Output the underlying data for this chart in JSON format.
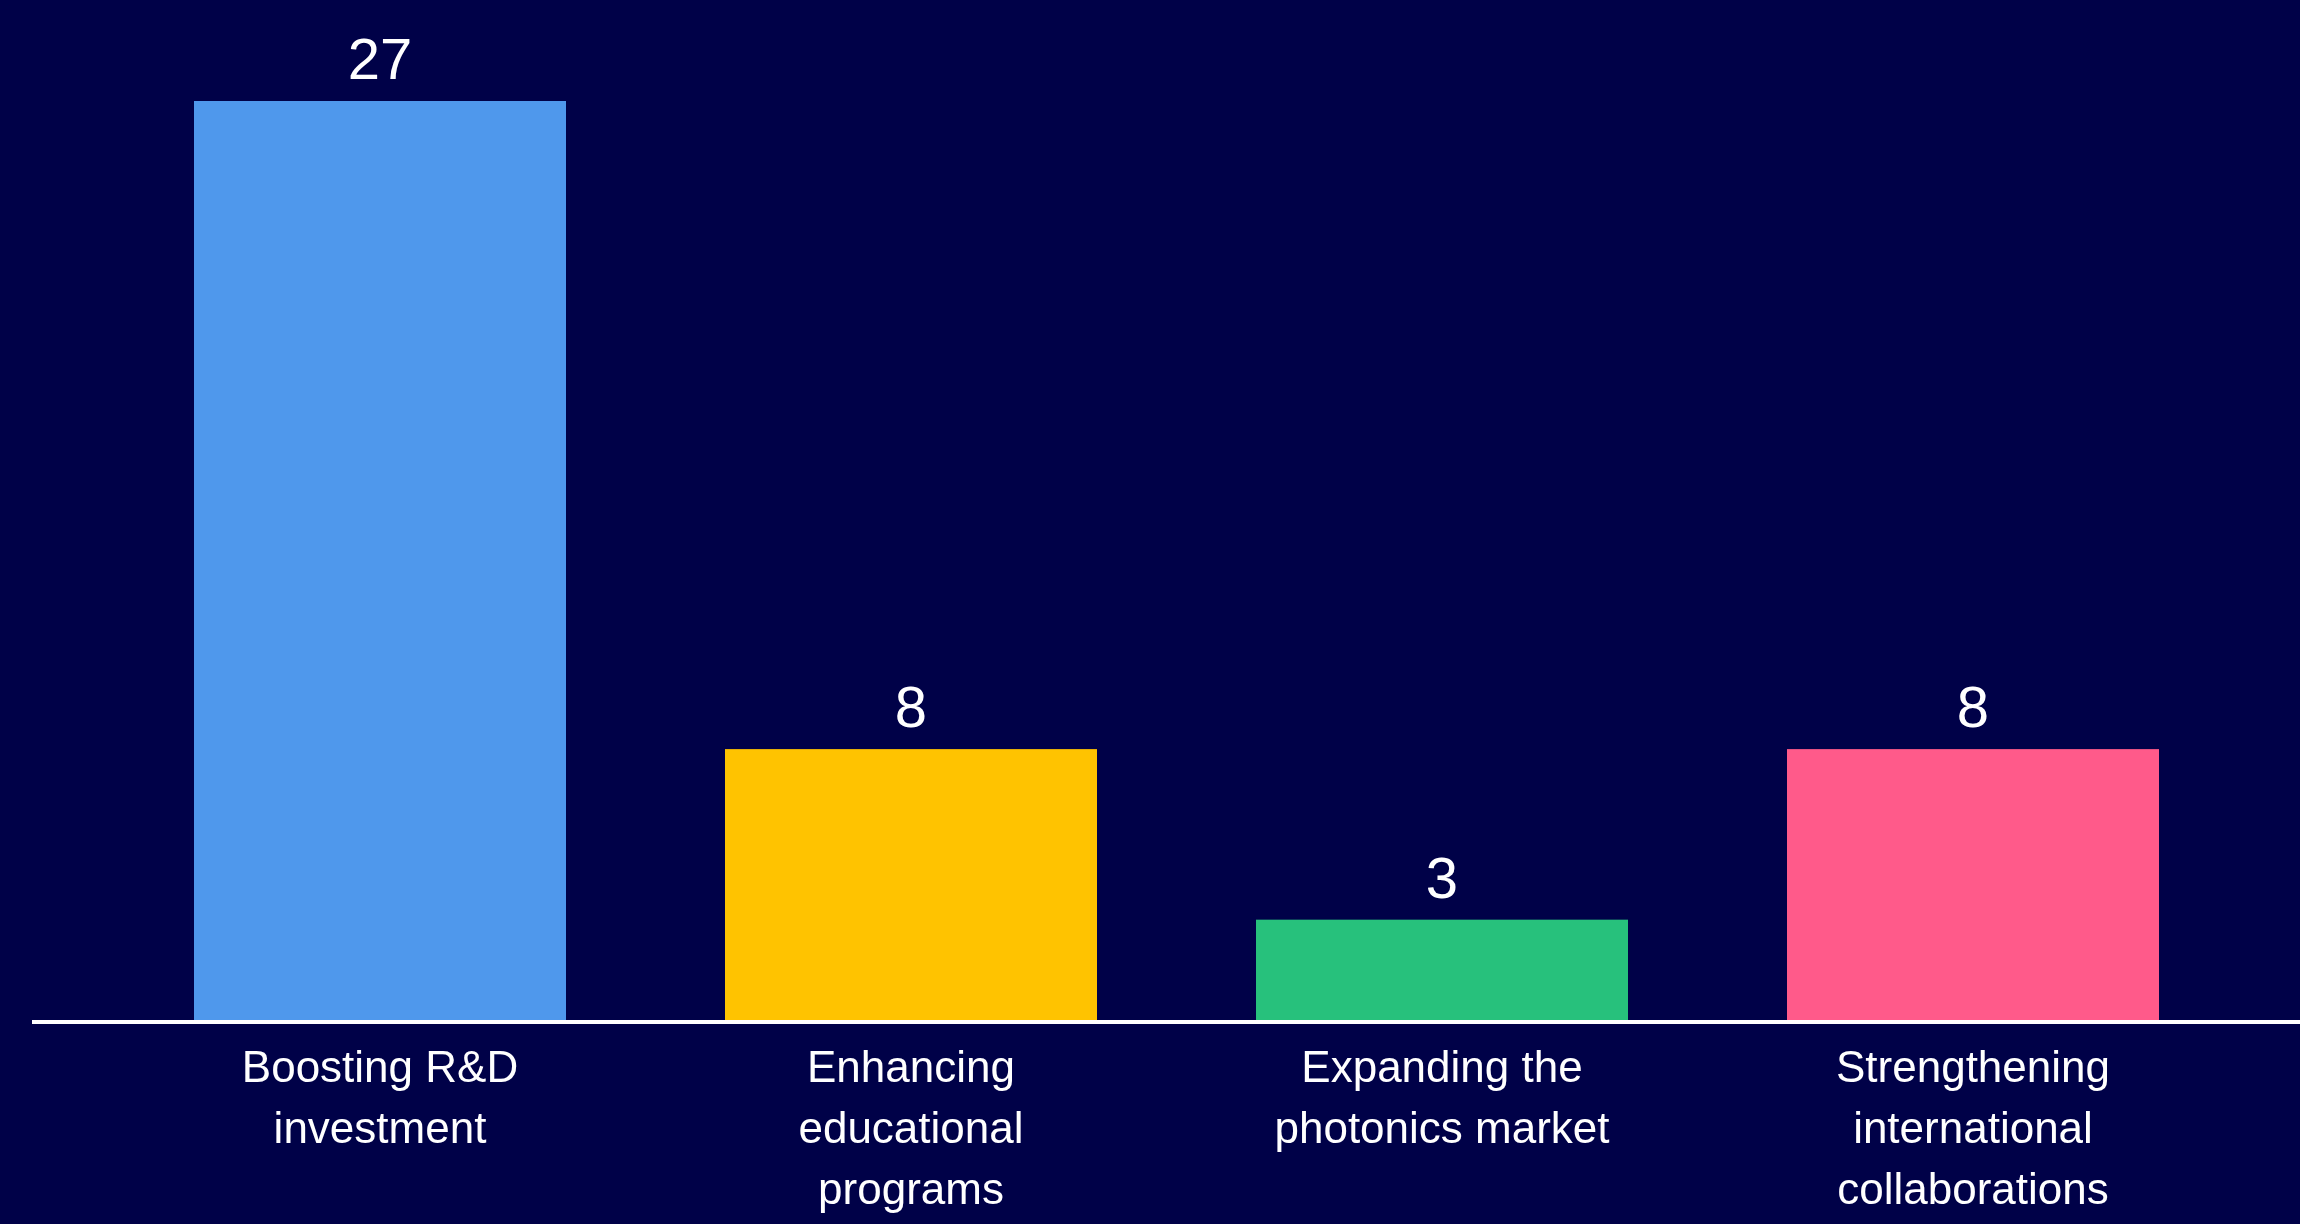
{
  "chart_data": {
    "type": "bar",
    "categories": [
      "Boosting R&D investment",
      "Enhancing educational programs",
      "Expanding the photonics market",
      "Strengthening international collaborations"
    ],
    "values": [
      27,
      8,
      3,
      8
    ],
    "colors": [
      "#4f98ec",
      "#ffc300",
      "#27c17c",
      "#ff5a8a"
    ],
    "data_labels": true
  }
}
